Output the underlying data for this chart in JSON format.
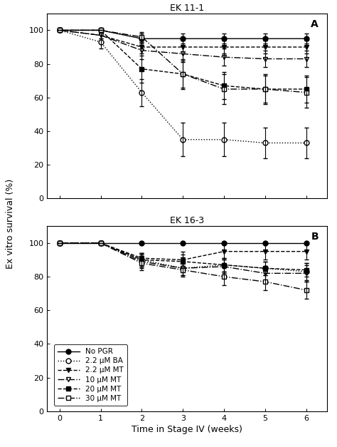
{
  "title_A": "EK 11-1",
  "title_B": "EK 16-3",
  "xlabel": "Time in Stage IV (weeks)",
  "ylabel": "Ex vitro survival (%)",
  "panel_A": "A",
  "panel_B": "B",
  "x": [
    0,
    1,
    2,
    3,
    4,
    5,
    6
  ],
  "EK11_NoPGR": [
    100,
    100,
    95,
    95,
    95,
    95,
    95
  ],
  "EK11_BA": [
    100,
    93,
    63,
    35,
    35,
    33,
    33
  ],
  "EK11_MT22": [
    100,
    97,
    90,
    90,
    90,
    90,
    90
  ],
  "EK11_MT10": [
    100,
    97,
    88,
    86,
    84,
    83,
    83
  ],
  "EK11_MT20": [
    100,
    100,
    77,
    74,
    67,
    65,
    65
  ],
  "EK11_MT30": [
    100,
    100,
    96,
    74,
    65,
    65,
    63
  ],
  "EK11_NoPGR_err": [
    0,
    0,
    3,
    3,
    3,
    3,
    3
  ],
  "EK11_BA_err": [
    0,
    4,
    8,
    10,
    10,
    9,
    9
  ],
  "EK11_MT22_err": [
    0,
    2,
    4,
    4,
    4,
    4,
    4
  ],
  "EK11_MT10_err": [
    0,
    2,
    5,
    5,
    5,
    5,
    5
  ],
  "EK11_MT20_err": [
    0,
    0,
    8,
    8,
    8,
    8,
    8
  ],
  "EK11_MT30_err": [
    0,
    0,
    3,
    9,
    9,
    9,
    9
  ],
  "EK16_NoPGR": [
    100,
    100,
    100,
    100,
    100,
    100,
    100
  ],
  "EK16_BA": [
    100,
    100,
    90,
    85,
    87,
    85,
    83
  ],
  "EK16_MT22": [
    100,
    100,
    91,
    90,
    95,
    95,
    95
  ],
  "EK16_MT10": [
    100,
    100,
    89,
    85,
    86,
    82,
    82
  ],
  "EK16_MT20": [
    100,
    100,
    90,
    89,
    87,
    85,
    84
  ],
  "EK16_MT30": [
    100,
    100,
    88,
    84,
    80,
    77,
    72
  ],
  "EK16_NoPGR_err": [
    0,
    0,
    0,
    0,
    0,
    0,
    0
  ],
  "EK16_BA_err": [
    0,
    0,
    4,
    4,
    4,
    4,
    5
  ],
  "EK16_MT22_err": [
    0,
    0,
    3,
    5,
    5,
    5,
    5
  ],
  "EK16_MT10_err": [
    0,
    0,
    4,
    4,
    4,
    4,
    5
  ],
  "EK16_MT20_err": [
    0,
    0,
    4,
    4,
    4,
    4,
    4
  ],
  "EK16_MT30_err": [
    0,
    0,
    4,
    4,
    5,
    5,
    5
  ],
  "legend_labels": [
    "No PGR",
    "2.2 μM BA",
    "2.2 μM MT",
    "10 μM MT",
    "20 μM MT",
    "30 μM MT"
  ],
  "color": "#000000",
  "bg_color": "#ffffff",
  "ylim_A": [
    0,
    110
  ],
  "ylim_B": [
    0,
    110
  ],
  "yticks_A": [
    0,
    20,
    40,
    60,
    80,
    100
  ],
  "yticks_B": [
    0,
    20,
    40,
    60,
    80,
    100
  ],
  "xlim": [
    -0.3,
    6.5
  ],
  "xticks": [
    0,
    1,
    2,
    3,
    4,
    5,
    6
  ]
}
